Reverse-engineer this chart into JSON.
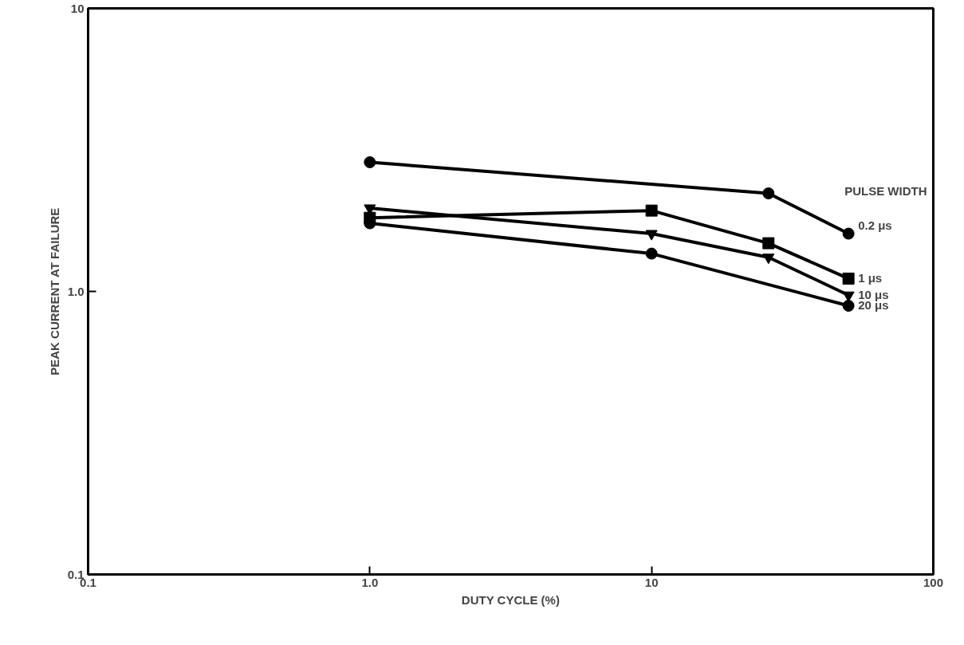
{
  "chart_data": {
    "type": "line",
    "xlabel": "DUTY CYCLE (%)",
    "ylabel": "PEAK CURRENT AT FAILURE",
    "legend_title": "PULSE WIDTH",
    "log": "xy",
    "xlim": [
      0.1,
      100
    ],
    "ylim": [
      0.1,
      10
    ],
    "xticks": [
      0.1,
      {
        "value": 1,
        "label": "1.0"
      },
      10,
      100
    ],
    "yticks": [
      0.1,
      {
        "value": 1,
        "label": "1.0"
      },
      10
    ],
    "grid": false,
    "line_style": "solid",
    "series": [
      {
        "name": "0.2 μs",
        "color": "#000000",
        "marker": "circle",
        "x": [
          1,
          26,
          50
        ],
        "values": [
          2.86,
          2.22,
          1.6
        ]
      },
      {
        "name": "1 μs",
        "color": "#000000",
        "marker": "square",
        "x": [
          1,
          10,
          26,
          50
        ],
        "values": [
          1.82,
          1.93,
          1.48,
          1.11
        ]
      },
      {
        "name": "10 μs",
        "color": "#000000",
        "marker": "triangle",
        "x": [
          1,
          10,
          26,
          50
        ],
        "values": [
          1.97,
          1.6,
          1.32,
          0.97
        ]
      },
      {
        "name": "20 μs",
        "color": "#000000",
        "marker": "circle",
        "x": [
          1,
          10,
          50
        ],
        "values": [
          1.74,
          1.36,
          0.89
        ]
      }
    ]
  }
}
